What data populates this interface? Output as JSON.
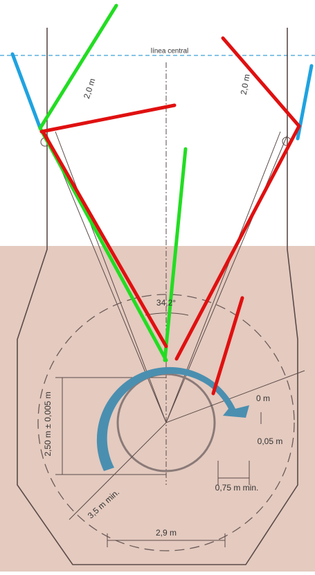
{
  "labels": {
    "center_line": "línea central",
    "left_offset": "2,0 m",
    "right_offset": "2,0 m",
    "angle": "34,2°",
    "height": "2,50 m ± 0,005 m",
    "radius_partial": "0 m",
    "gap": "0,05 m",
    "clearance": "0,75 m min.",
    "radius": "3,5 m min.",
    "width": "2,9 m"
  }
}
